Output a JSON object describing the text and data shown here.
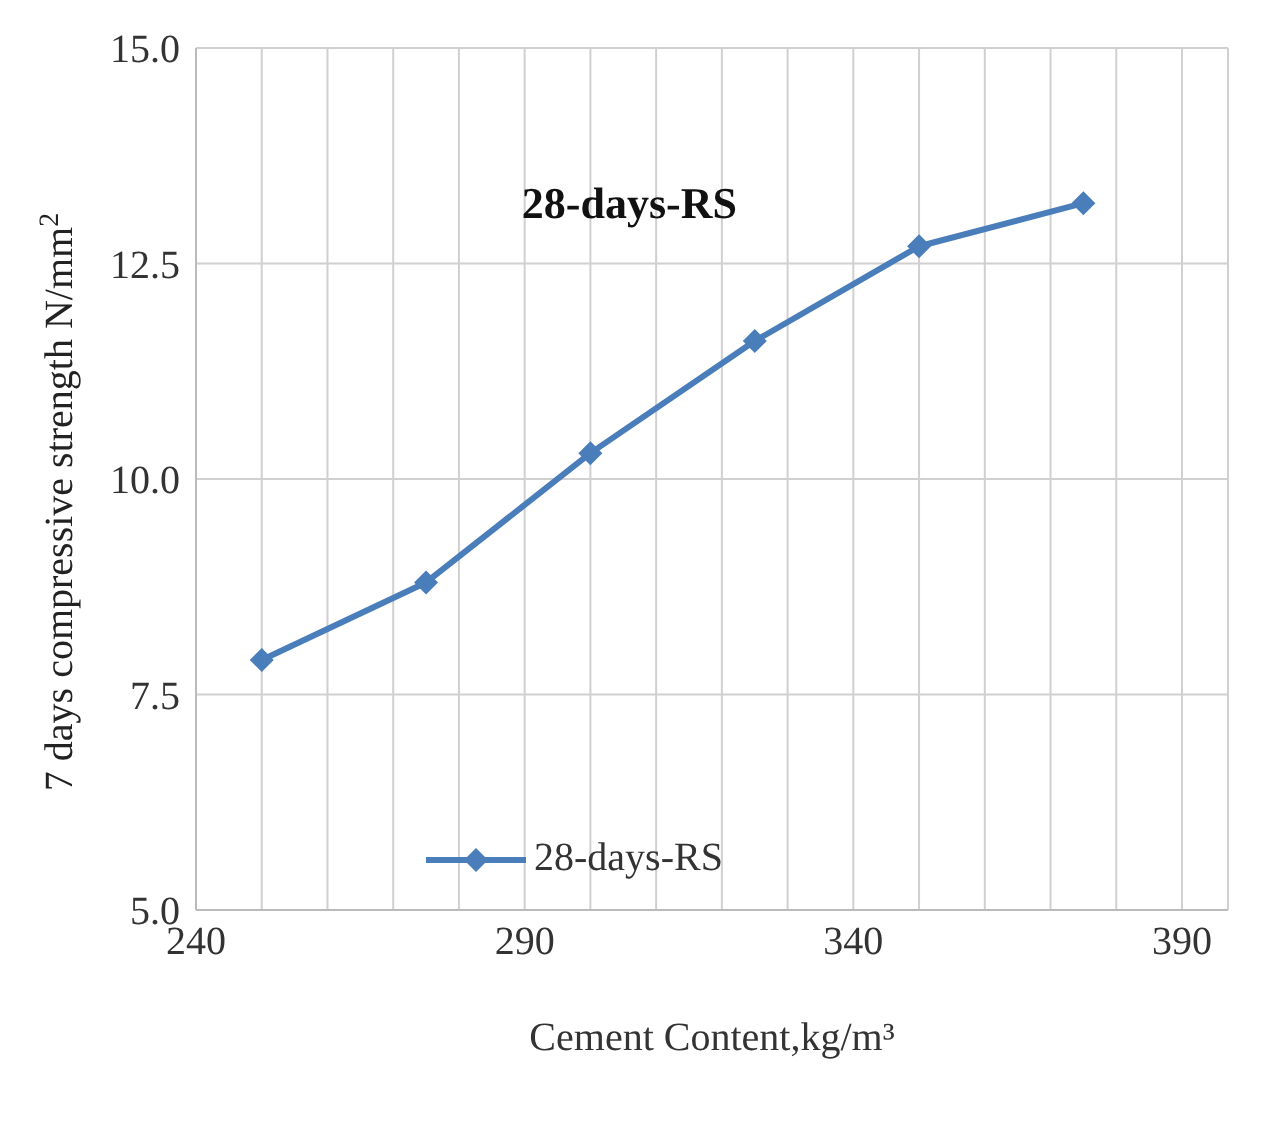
{
  "chart_data": {
    "type": "line",
    "title": "28-days-RS",
    "xlabel": "Cement Content,kg/m³",
    "ylabel": "7 days compressive strength N/mm$^{2}$",
    "x": [
      250,
      275,
      300,
      325,
      350,
      375
    ],
    "series": [
      {
        "name": "28-days-RS",
        "color": "#4a7ebb",
        "values": [
          7.9,
          8.8,
          10.3,
          11.6,
          12.7,
          13.2
        ]
      }
    ],
    "xlim": [
      240,
      397
    ],
    "xticks": [
      240,
      {
        "value": 250,
        "label": null
      },
      {
        "value": 260,
        "label": null
      },
      {
        "value": 270,
        "label": null
      },
      {
        "value": 280,
        "label": null
      },
      290,
      {
        "value": 300,
        "label": null
      },
      {
        "value": 310,
        "label": null
      },
      {
        "value": 320,
        "label": null
      },
      {
        "value": 330,
        "label": null
      },
      340,
      {
        "value": 350,
        "label": null
      },
      {
        "value": 360,
        "label": null
      },
      {
        "value": 370,
        "label": null
      },
      {
        "value": 380,
        "label": null
      },
      390
    ],
    "ylim": [
      5,
      15
    ],
    "yticks": [
      {
        "value": 5,
        "label": "5.0"
      },
      {
        "value": 7.5,
        "label": "7.5"
      },
      {
        "value": 10,
        "label": "10.0"
      },
      {
        "value": 12.5,
        "label": "12.5"
      },
      {
        "value": 15,
        "label": "15.0"
      }
    ],
    "grid": true,
    "legend": "bottom left",
    "marker": "diamond",
    "line_style": "solid"
  }
}
